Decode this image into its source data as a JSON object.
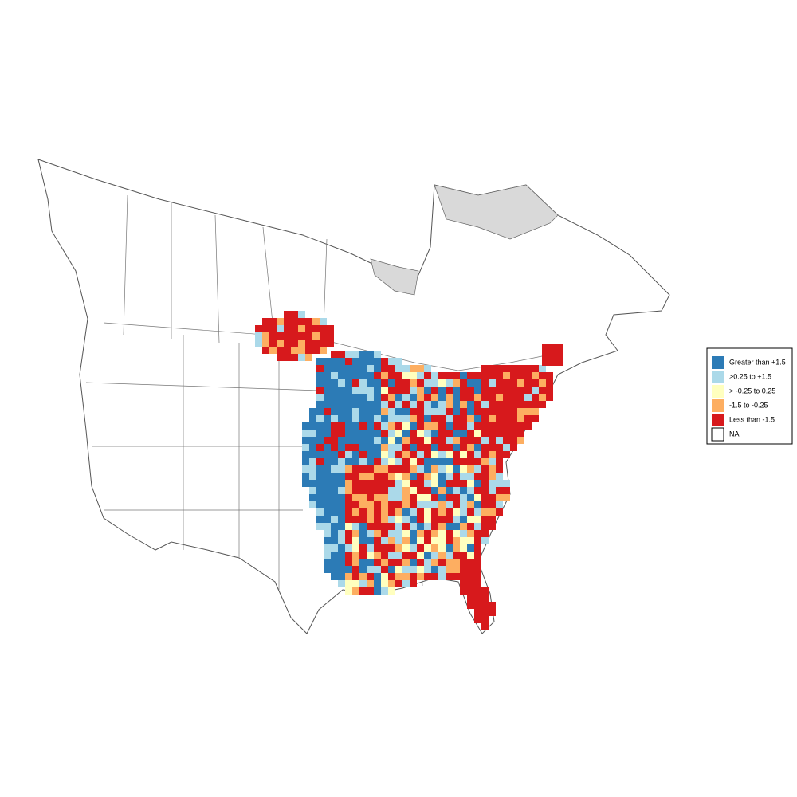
{
  "legend": {
    "items": [
      {
        "label": "Greater than +1.5",
        "color": "#2c7bb6"
      },
      {
        "label": ">0.25 to +1.5",
        "color": "#abd9e9"
      },
      {
        "label": "> -0.25 to 0.25",
        "color": "#ffffbf"
      },
      {
        "label": "-1.5 to -0.25",
        "color": "#fdae61"
      },
      {
        "label": "Less than -1.5",
        "color": "#d7191c"
      },
      {
        "label": "NA",
        "color": "#ffffff"
      }
    ]
  }
}
